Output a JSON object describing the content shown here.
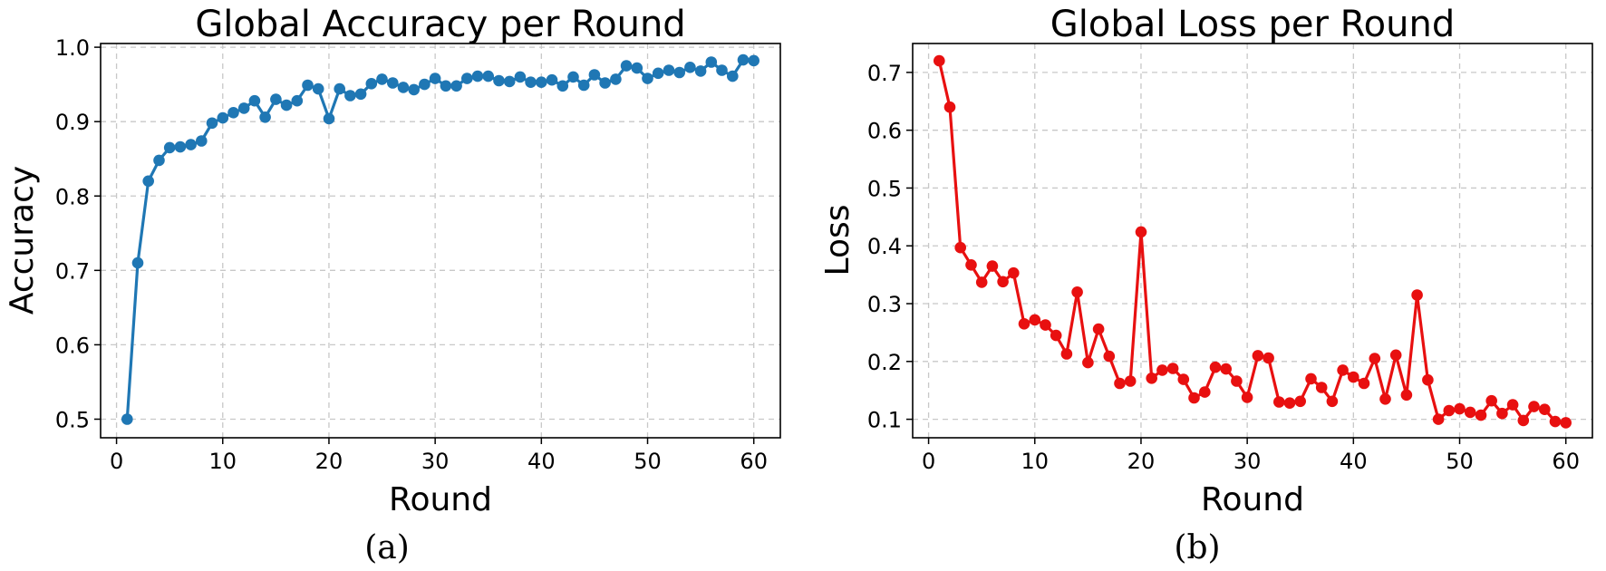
{
  "chart_data": [
    {
      "type": "line",
      "title": "Global Accuracy per Round",
      "xlabel": "Round",
      "ylabel": "Accuracy",
      "caption": "(a)",
      "xlim": [
        -1.5,
        62.5
      ],
      "ylim": [
        0.475,
        1.005
      ],
      "xticks": [
        "0",
        "10",
        "20",
        "30",
        "40",
        "50",
        "60"
      ],
      "yticks": [
        "0.5",
        "0.6",
        "0.7",
        "0.8",
        "0.9",
        "1.0"
      ],
      "grid": true,
      "color": "#1f77b4",
      "series": [
        {
          "x": [
            1,
            2,
            3,
            4,
            5,
            6,
            7,
            8,
            9,
            10,
            11,
            12,
            13,
            14,
            15,
            16,
            17,
            18,
            19,
            20,
            21,
            22,
            23,
            24,
            25,
            26,
            27,
            28,
            29,
            30,
            31,
            32,
            33,
            34,
            35,
            36,
            37,
            38,
            39,
            40,
            41,
            42,
            43,
            44,
            45,
            46,
            47,
            48,
            49,
            50,
            51,
            52,
            53,
            54,
            55,
            56,
            57,
            58,
            59,
            60
          ],
          "y": [
            0.5,
            0.71,
            0.82,
            0.848,
            0.865,
            0.866,
            0.869,
            0.874,
            0.898,
            0.905,
            0.912,
            0.918,
            0.928,
            0.906,
            0.93,
            0.922,
            0.928,
            0.949,
            0.944,
            0.904,
            0.944,
            0.935,
            0.937,
            0.951,
            0.957,
            0.952,
            0.946,
            0.943,
            0.95,
            0.958,
            0.948,
            0.948,
            0.958,
            0.961,
            0.961,
            0.955,
            0.954,
            0.96,
            0.953,
            0.953,
            0.956,
            0.948,
            0.96,
            0.949,
            0.963,
            0.952,
            0.957,
            0.975,
            0.972,
            0.958,
            0.965,
            0.969,
            0.966,
            0.973,
            0.968,
            0.98,
            0.969,
            0.961,
            0.983,
            0.982
          ]
        }
      ]
    },
    {
      "type": "line",
      "title": "Global Loss per Round",
      "xlabel": "Round",
      "ylabel": "Loss",
      "caption": "(b)",
      "xlim": [
        -1.5,
        62.5
      ],
      "ylim": [
        0.068,
        0.75
      ],
      "xticks": [
        "0",
        "10",
        "20",
        "30",
        "40",
        "50",
        "60"
      ],
      "yticks": [
        "0.1",
        "0.2",
        "0.3",
        "0.4",
        "0.5",
        "0.6",
        "0.7"
      ],
      "grid": true,
      "color": "#e81010",
      "series": [
        {
          "x": [
            1,
            2,
            3,
            4,
            5,
            6,
            7,
            8,
            9,
            10,
            11,
            12,
            13,
            14,
            15,
            16,
            17,
            18,
            19,
            20,
            21,
            22,
            23,
            24,
            25,
            26,
            27,
            28,
            29,
            30,
            31,
            32,
            33,
            34,
            35,
            36,
            37,
            38,
            39,
            40,
            41,
            42,
            43,
            44,
            45,
            46,
            47,
            48,
            49,
            50,
            51,
            52,
            53,
            54,
            55,
            56,
            57,
            58,
            59,
            60
          ],
          "y": [
            0.72,
            0.64,
            0.397,
            0.367,
            0.337,
            0.365,
            0.338,
            0.353,
            0.265,
            0.272,
            0.263,
            0.245,
            0.213,
            0.32,
            0.198,
            0.256,
            0.209,
            0.162,
            0.166,
            0.424,
            0.171,
            0.185,
            0.188,
            0.169,
            0.137,
            0.147,
            0.19,
            0.187,
            0.166,
            0.138,
            0.21,
            0.206,
            0.13,
            0.128,
            0.131,
            0.17,
            0.155,
            0.131,
            0.185,
            0.173,
            0.162,
            0.205,
            0.135,
            0.211,
            0.142,
            0.315,
            0.168,
            0.1,
            0.115,
            0.118,
            0.112,
            0.107,
            0.132,
            0.11,
            0.125,
            0.098,
            0.122,
            0.117,
            0.096,
            0.094
          ]
        }
      ]
    }
  ]
}
